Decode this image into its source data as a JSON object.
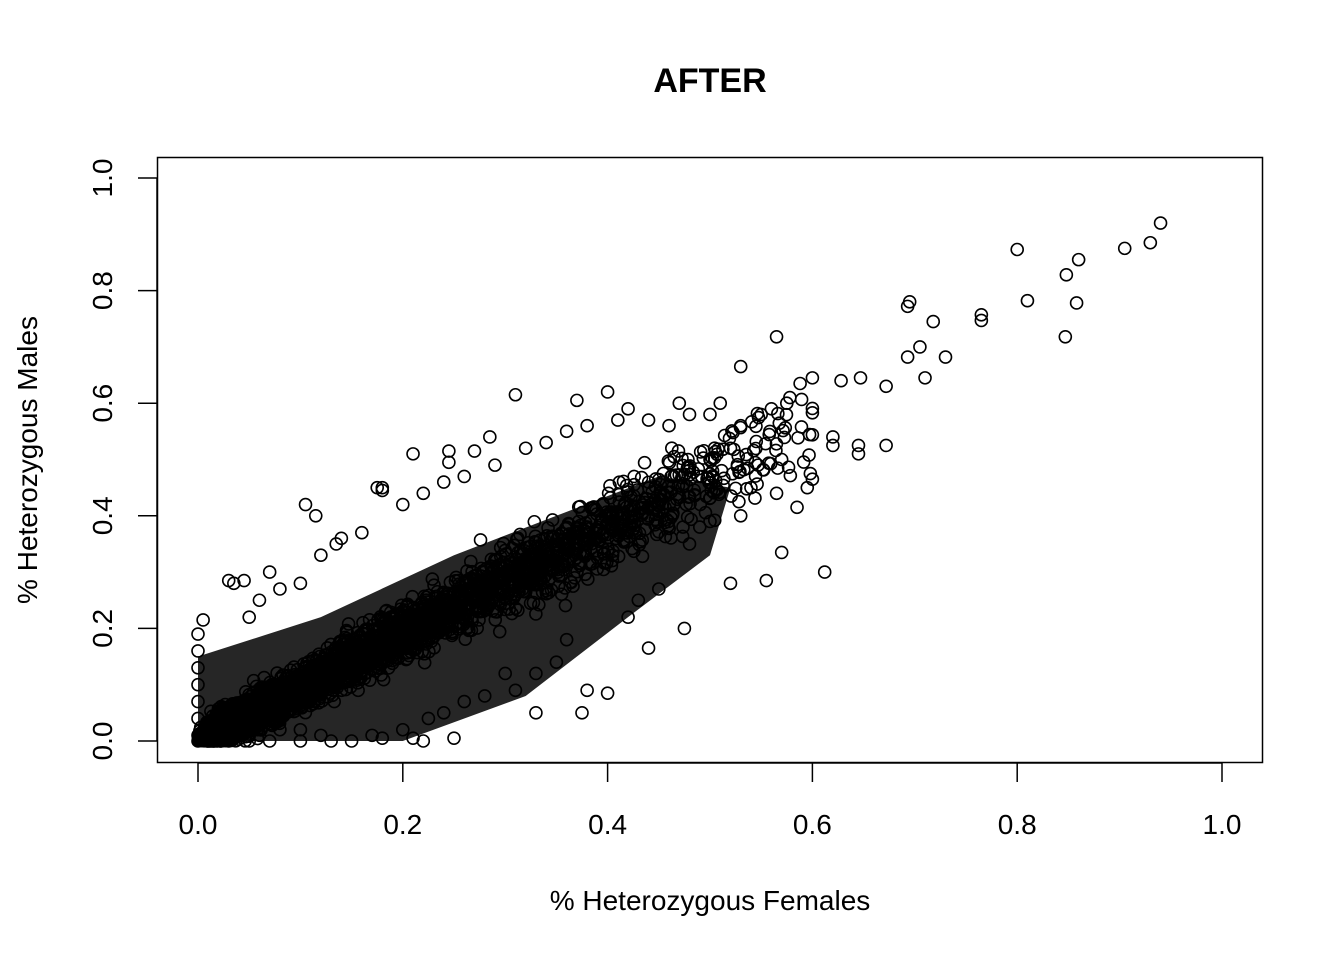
{
  "chart_data": {
    "type": "scatter",
    "title": "AFTER",
    "xlabel": "% Heterozygous Females",
    "ylabel": "% Heterozygous Males",
    "xlim": [
      0.0,
      1.0
    ],
    "ylim": [
      0.0,
      1.0
    ],
    "xticks": [
      "0.0",
      "0.2",
      "0.4",
      "0.6",
      "0.8",
      "1.0"
    ],
    "yticks": [
      "0.0",
      "0.2",
      "0.4",
      "0.6",
      "0.8",
      "1.0"
    ],
    "marker": "open-circle",
    "marker_color": "#000000",
    "grid": false,
    "series": [
      {
        "points": [
          [
            0.94,
            0.92
          ],
          [
            0.93,
            0.885
          ],
          [
            0.905,
            0.875
          ],
          [
            0.8,
            0.873
          ],
          [
            0.86,
            0.855
          ],
          [
            0.848,
            0.828
          ],
          [
            0.695,
            0.78
          ],
          [
            0.693,
            0.772
          ],
          [
            0.81,
            0.782
          ],
          [
            0.858,
            0.778
          ],
          [
            0.765,
            0.757
          ],
          [
            0.765,
            0.747
          ],
          [
            0.718,
            0.745
          ],
          [
            0.847,
            0.718
          ],
          [
            0.565,
            0.718
          ],
          [
            0.705,
            0.7
          ],
          [
            0.693,
            0.682
          ],
          [
            0.73,
            0.682
          ],
          [
            0.53,
            0.665
          ],
          [
            0.71,
            0.645
          ],
          [
            0.647,
            0.645
          ],
          [
            0.6,
            0.645
          ],
          [
            0.628,
            0.64
          ],
          [
            0.672,
            0.63
          ],
          [
            0.588,
            0.635
          ],
          [
            0.578,
            0.61
          ],
          [
            0.575,
            0.6
          ],
          [
            0.51,
            0.6
          ],
          [
            0.47,
            0.6
          ],
          [
            0.4,
            0.62
          ],
          [
            0.31,
            0.615
          ],
          [
            0.37,
            0.605
          ],
          [
            0.42,
            0.59
          ],
          [
            0.55,
            0.58
          ],
          [
            0.56,
            0.59
          ],
          [
            0.62,
            0.525
          ],
          [
            0.645,
            0.525
          ],
          [
            0.672,
            0.525
          ],
          [
            0.645,
            0.51
          ],
          [
            0.62,
            0.54
          ],
          [
            0.598,
            0.475
          ],
          [
            0.6,
            0.465
          ],
          [
            0.595,
            0.45
          ],
          [
            0.585,
            0.415
          ],
          [
            0.57,
            0.5
          ],
          [
            0.565,
            0.44
          ],
          [
            0.57,
            0.335
          ],
          [
            0.612,
            0.3
          ],
          [
            0.555,
            0.285
          ],
          [
            0.52,
            0.28
          ],
          [
            0.475,
            0.2
          ],
          [
            0.44,
            0.165
          ],
          [
            0.375,
            0.05
          ],
          [
            0.38,
            0.09
          ],
          [
            0.4,
            0.085
          ],
          [
            0.33,
            0.05
          ],
          [
            0.31,
            0.09
          ],
          [
            0.25,
            0.005
          ],
          [
            0.225,
            0.04
          ],
          [
            0.188,
            0.22
          ],
          [
            0.18,
            0.45
          ],
          [
            0.175,
            0.45
          ],
          [
            0.18,
            0.445
          ],
          [
            0.105,
            0.42
          ],
          [
            0.115,
            0.4
          ],
          [
            0.21,
            0.51
          ],
          [
            0.245,
            0.495
          ],
          [
            0.245,
            0.515
          ],
          [
            0.27,
            0.515
          ],
          [
            0.285,
            0.54
          ],
          [
            0.135,
            0.35
          ],
          [
            0.045,
            0.285
          ],
          [
            0.03,
            0.285
          ],
          [
            0.035,
            0.28
          ],
          [
            0.07,
            0.3
          ],
          [
            0.005,
            0.215
          ],
          [
            0.0,
            0.19
          ],
          [
            0.0,
            0.16
          ],
          [
            0.0,
            0.13
          ],
          [
            0.0,
            0.1
          ],
          [
            0.0,
            0.07
          ],
          [
            0.0,
            0.04
          ],
          [
            0.0,
            0.01
          ],
          [
            0.0,
            0.0
          ],
          [
            0.015,
            0.0
          ],
          [
            0.03,
            0.0
          ],
          [
            0.05,
            0.0
          ],
          [
            0.07,
            0.0
          ],
          [
            0.1,
            0.0
          ],
          [
            0.13,
            0.0
          ],
          [
            0.15,
            0.0
          ],
          [
            0.18,
            0.005
          ],
          [
            0.21,
            0.005
          ],
          [
            0.22,
            0.0
          ],
          [
            0.465,
            0.47
          ],
          [
            0.5,
            0.5
          ],
          [
            0.52,
            0.52
          ],
          [
            0.53,
            0.4
          ],
          [
            0.54,
            0.45
          ],
          [
            0.48,
            0.35
          ],
          [
            0.49,
            0.38
          ],
          [
            0.5,
            0.39
          ],
          [
            0.45,
            0.27
          ],
          [
            0.43,
            0.25
          ],
          [
            0.42,
            0.22
          ],
          [
            0.36,
            0.18
          ],
          [
            0.35,
            0.14
          ],
          [
            0.33,
            0.12
          ],
          [
            0.3,
            0.12
          ],
          [
            0.28,
            0.08
          ],
          [
            0.26,
            0.07
          ],
          [
            0.24,
            0.05
          ],
          [
            0.2,
            0.02
          ],
          [
            0.17,
            0.01
          ],
          [
            0.12,
            0.01
          ],
          [
            0.1,
            0.02
          ],
          [
            0.08,
            0.02
          ],
          [
            0.06,
            0.01
          ],
          [
            0.05,
            0.22
          ],
          [
            0.06,
            0.25
          ],
          [
            0.08,
            0.27
          ],
          [
            0.1,
            0.28
          ],
          [
            0.12,
            0.33
          ],
          [
            0.14,
            0.36
          ],
          [
            0.16,
            0.37
          ],
          [
            0.2,
            0.42
          ],
          [
            0.22,
            0.44
          ],
          [
            0.24,
            0.46
          ],
          [
            0.26,
            0.47
          ],
          [
            0.29,
            0.49
          ],
          [
            0.32,
            0.52
          ],
          [
            0.34,
            0.53
          ],
          [
            0.36,
            0.55
          ],
          [
            0.38,
            0.56
          ],
          [
            0.41,
            0.57
          ],
          [
            0.44,
            0.57
          ],
          [
            0.46,
            0.56
          ],
          [
            0.48,
            0.58
          ],
          [
            0.5,
            0.58
          ],
          [
            0.53,
            0.56
          ]
        ]
      }
    ],
    "dense_cloud_note_removed": true
  }
}
